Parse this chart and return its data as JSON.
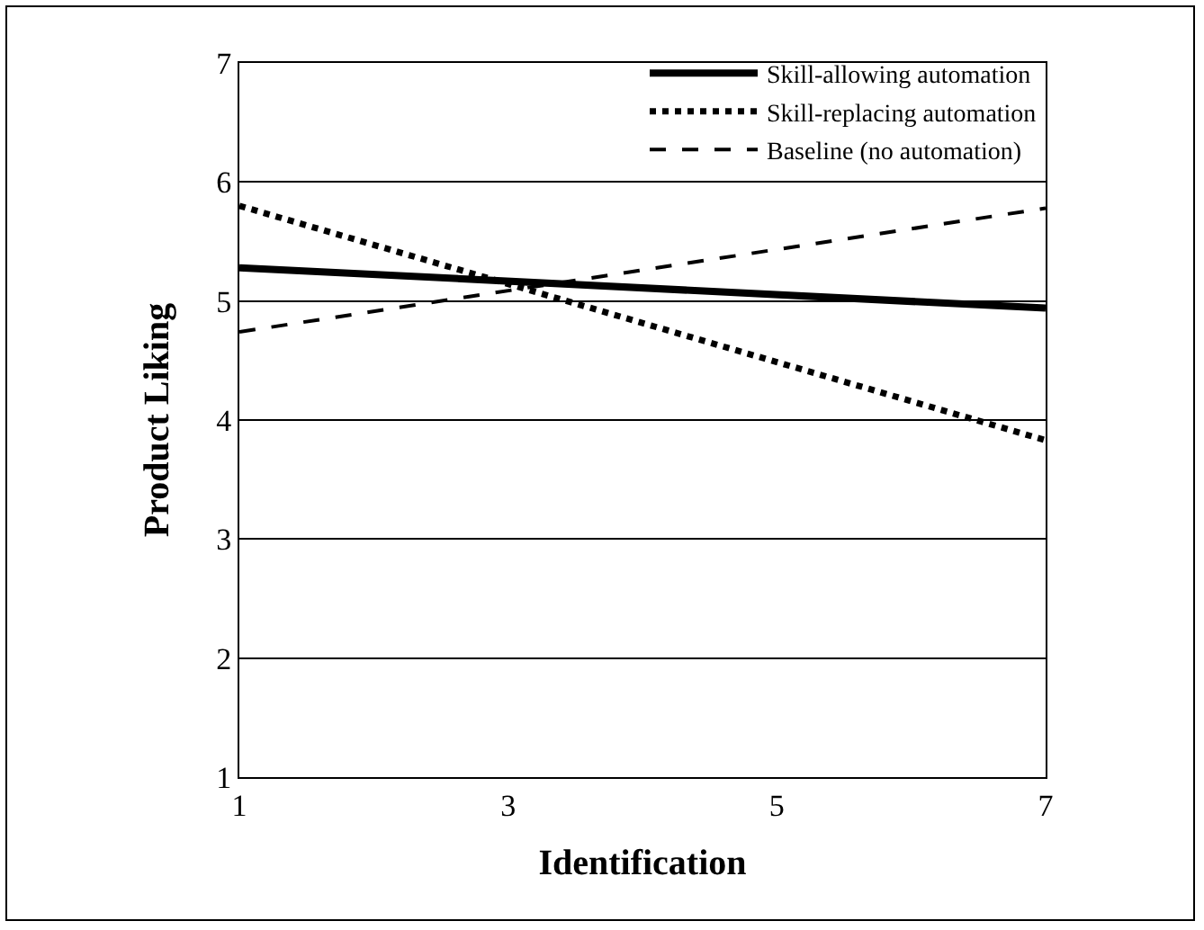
{
  "chart_data": {
    "type": "line",
    "xlabel": "Identification",
    "ylabel": "Product Liking",
    "x": [
      1,
      7
    ],
    "series": [
      {
        "name": "Skill-allowing automation",
        "color": "#000000",
        "line_style": "solid",
        "values": [
          5.28,
          4.94
        ]
      },
      {
        "name": "Skill-replacing automation",
        "color": "#000000",
        "line_style": "dotted",
        "values": [
          5.8,
          3.83
        ]
      },
      {
        "name": "Baseline (no automation)",
        "color": "#000000",
        "line_style": "dashed",
        "values": [
          4.74,
          5.78
        ]
      }
    ],
    "xlim": [
      1,
      7
    ],
    "xticks": [
      1,
      3,
      5,
      7
    ],
    "ylim": [
      1,
      7
    ],
    "yticks": [
      1,
      2,
      3,
      4,
      5,
      6,
      7
    ],
    "grid": "y",
    "legend": "top right",
    "marker": "none"
  }
}
